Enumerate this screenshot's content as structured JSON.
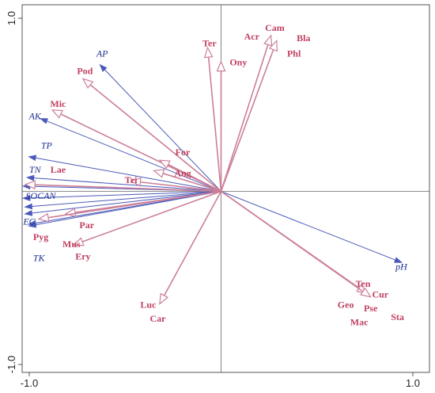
{
  "chart_data": {
    "type": "scatter",
    "plot_kind": "biplot",
    "xlim": [
      -1.0,
      1.0
    ],
    "ylim": [
      -1.0,
      1.0
    ],
    "x_ticks": [
      {
        "value": -1.0,
        "label": "-1.0"
      },
      {
        "value": 1.0,
        "label": "1.0"
      }
    ],
    "y_ticks": [
      {
        "value": 1.0,
        "label": "1.0"
      },
      {
        "value": -1.0,
        "label": "-1.0"
      }
    ],
    "zero_lines": true,
    "colors": {
      "environment": "#1f2f8f",
      "environment_line": "#4a5ab8",
      "taxa": "#c04060",
      "taxa_line": "#cc7f98"
    },
    "environmental_vectors": [
      {
        "name": "AP",
        "x": -0.63,
        "y": 0.73,
        "label_x": -0.62,
        "label_y": 0.79
      },
      {
        "name": "AK",
        "x": -0.94,
        "y": 0.42,
        "label_x": -0.97,
        "label_y": 0.43
      },
      {
        "name": "TP",
        "x": -1.0,
        "y": 0.2,
        "label_x": -0.91,
        "label_y": 0.26
      },
      {
        "name": "TN",
        "x": -1.01,
        "y": 0.08,
        "label_x": -0.97,
        "label_y": 0.12
      },
      {
        "name": "SOCAN",
        "x": -1.03,
        "y": -0.04,
        "label_x": -0.94,
        "label_y": -0.03
      },
      {
        "name": "",
        "x": -1.03,
        "y": 0.03
      },
      {
        "name": "",
        "x": -1.02,
        "y": -0.09
      },
      {
        "name": "",
        "x": -1.02,
        "y": -0.13
      },
      {
        "name": "EC",
        "x": -1.0,
        "y": -0.19,
        "label_x": -1.0,
        "label_y": -0.18
      },
      {
        "name": "TK",
        "x": -1.0,
        "y": -0.2,
        "label_x": -0.95,
        "label_y": -0.39
      },
      {
        "name": "pH",
        "x": 0.94,
        "y": -0.41,
        "label_x": 0.94,
        "label_y": -0.44
      }
    ],
    "taxa_vectors": [
      {
        "name": "Cam",
        "x": 0.26,
        "y": 0.9,
        "label_x": 0.28,
        "label_y": 0.94
      },
      {
        "name": "Acr",
        "label_x": 0.16,
        "label_y": 0.89
      },
      {
        "name": "Bla",
        "x": 0.29,
        "y": 0.87,
        "label_x": 0.43,
        "label_y": 0.88
      },
      {
        "name": "Phl",
        "label_x": 0.38,
        "label_y": 0.79
      },
      {
        "name": "Ter",
        "x": -0.07,
        "y": 0.83,
        "label_x": -0.06,
        "label_y": 0.85
      },
      {
        "name": "Ony",
        "x": 0.0,
        "y": 0.75,
        "label_x": 0.09,
        "label_y": 0.74
      },
      {
        "name": "Pod",
        "x": -0.72,
        "y": 0.65,
        "label_x": -0.71,
        "label_y": 0.69
      },
      {
        "name": "Mic",
        "x": -0.88,
        "y": 0.47,
        "label_x": -0.85,
        "label_y": 0.5
      },
      {
        "name": "For",
        "x": -0.32,
        "y": 0.18,
        "label_x": -0.2,
        "label_y": 0.22
      },
      {
        "name": "Ang",
        "x": -0.35,
        "y": 0.12,
        "label_x": -0.2,
        "label_y": 0.1
      },
      {
        "name": "Tri",
        "x": -0.47,
        "y": 0.06,
        "label_x": -0.47,
        "label_y": 0.06
      },
      {
        "name": "Lae",
        "x": -1.02,
        "y": 0.04,
        "label_x": -0.85,
        "label_y": 0.12
      },
      {
        "name": "Par",
        "x": -0.81,
        "y": -0.13,
        "label_x": -0.7,
        "label_y": -0.2
      },
      {
        "name": "Pyg",
        "x": -0.95,
        "y": -0.16,
        "label_x": -0.94,
        "label_y": -0.27
      },
      {
        "name": "Mus",
        "x": -0.77,
        "y": -0.31,
        "label_x": -0.78,
        "label_y": -0.31
      },
      {
        "name": "Ery",
        "label_x": -0.72,
        "label_y": -0.38
      },
      {
        "name": "Luc",
        "x": -0.32,
        "y": -0.65,
        "label_x": -0.38,
        "label_y": -0.66
      },
      {
        "name": "Car",
        "label_x": -0.33,
        "label_y": -0.74
      },
      {
        "name": "Ten",
        "x": 0.76,
        "y": -0.59,
        "label_x": 0.74,
        "label_y": -0.54
      },
      {
        "name": "Cur",
        "x": 0.78,
        "y": -0.61,
        "label_x": 0.83,
        "label_y": -0.6
      },
      {
        "name": "Geo",
        "label_x": 0.65,
        "label_y": -0.66
      },
      {
        "name": "Pse",
        "label_x": 0.78,
        "label_y": -0.68
      },
      {
        "name": "Sta",
        "label_x": 0.92,
        "label_y": -0.73
      },
      {
        "name": "Mac",
        "label_x": 0.72,
        "label_y": -0.76
      }
    ]
  }
}
